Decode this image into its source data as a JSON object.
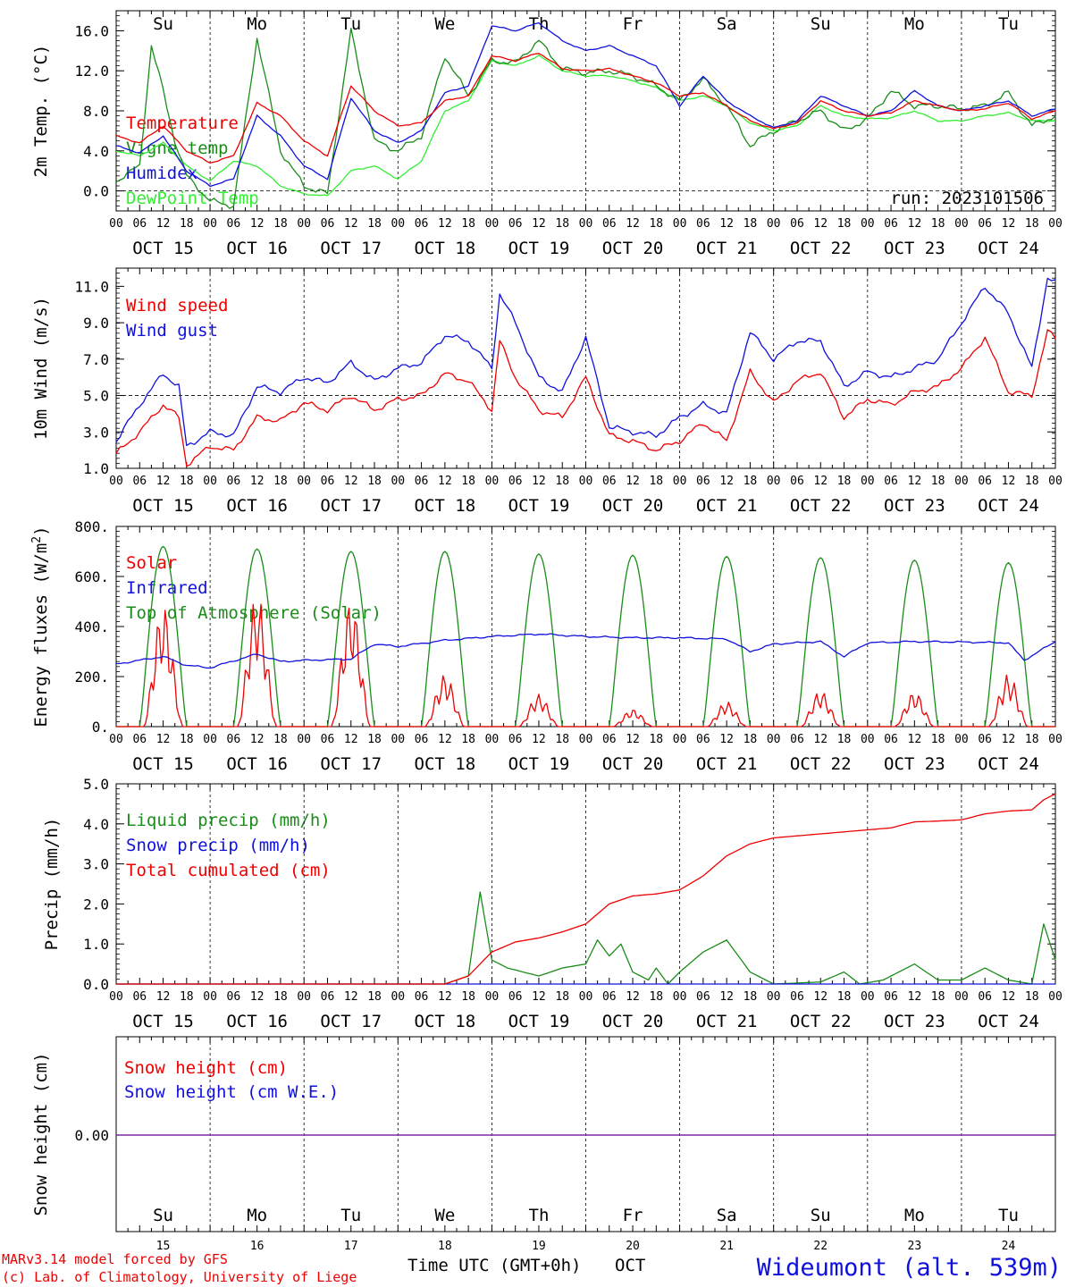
{
  "colors": {
    "red": "#ee0000",
    "green": "#1a8c1a",
    "blue": "#1010dd",
    "lightgreen": "#33ee33",
    "purple": "#7a2aa0"
  },
  "day_names": [
    "Su",
    "Mo",
    "Tu",
    "We",
    "Th",
    "Fr",
    "Sa",
    "Su",
    "Mo",
    "Tu"
  ],
  "weekend_flags": [
    true,
    false,
    false,
    false,
    false,
    false,
    true,
    true,
    false,
    false
  ],
  "dates": [
    "OCT 15",
    "OCT 16",
    "OCT 17",
    "OCT 18",
    "OCT 19",
    "OCT 20",
    "OCT 21",
    "OCT 22",
    "OCT 23",
    "OCT 24"
  ],
  "day_numbers": [
    "15",
    "16",
    "17",
    "18",
    "19",
    "20",
    "21",
    "22",
    "23",
    "24"
  ],
  "hour_labels": [
    "00",
    "06",
    "12",
    "18"
  ],
  "footer": {
    "model_line1": "MARv3.14 model forced by GFS",
    "model_line2": "(c) Lab. of Climatology, University of Liege",
    "time_axis": "Time UTC (GMT+0h)",
    "month": "OCT",
    "station": "Wideumont (alt. 539m)"
  },
  "chart_data": [
    {
      "type": "line",
      "ylabel": "2m Temp. (°C)",
      "ylim": [
        -2,
        18
      ],
      "yticks": [
        "0.0",
        "4.0",
        "8.0",
        "12.0",
        "16.0"
      ],
      "reference_line": 0,
      "annotation": "run: 2023101506",
      "x_unit": "hours since 2023-10-15 00 UTC",
      "series": [
        {
          "name": "Temperature",
          "color": "red",
          "x": [
            0,
            6,
            12,
            18,
            24,
            30,
            36,
            42,
            48,
            54,
            60,
            66,
            72,
            78,
            84,
            90,
            96,
            102,
            108,
            114,
            120,
            126,
            132,
            138,
            144,
            150,
            156,
            162,
            168,
            174,
            180,
            186,
            192,
            198,
            204,
            210,
            216,
            222,
            228,
            234,
            240
          ],
          "values": [
            5.5,
            4.8,
            6.5,
            4.0,
            2.8,
            3.5,
            8.8,
            7.5,
            5.0,
            3.5,
            10.5,
            8.0,
            6.5,
            6.8,
            9.0,
            9.5,
            13.5,
            13.0,
            13.8,
            12.2,
            12.0,
            12.2,
            11.5,
            10.8,
            9.5,
            9.8,
            8.5,
            7.0,
            6.2,
            6.8,
            9.0,
            8.0,
            7.5,
            7.8,
            9.0,
            8.5,
            8.0,
            8.2,
            8.8,
            7.2,
            8.0
          ]
        },
        {
          "name": "Vigne temp",
          "color": "green",
          "x": [
            0,
            6,
            9,
            12,
            15,
            18,
            24,
            30,
            36,
            42,
            48,
            54,
            60,
            66,
            72,
            78,
            84,
            90,
            96,
            102,
            108,
            114,
            120,
            126,
            132,
            138,
            144,
            150,
            156,
            162,
            168,
            174,
            180,
            186,
            192,
            198,
            204,
            210,
            216,
            222,
            228,
            234,
            240
          ],
          "values": [
            1.0,
            2.5,
            14.5,
            10.0,
            5.0,
            1.5,
            -1.0,
            -1.5,
            15.3,
            4.0,
            0.5,
            -0.3,
            16.0,
            5.0,
            4.0,
            5.5,
            13.5,
            9.5,
            13.0,
            12.8,
            15.0,
            12.2,
            11.8,
            12.0,
            11.5,
            10.5,
            9.0,
            11.2,
            8.5,
            4.5,
            6.0,
            7.0,
            8.0,
            6.0,
            7.2,
            10.0,
            8.5,
            8.5,
            8.2,
            8.5,
            9.8,
            6.5,
            7.5
          ]
        },
        {
          "name": "Humidex",
          "color": "blue",
          "x": [
            0,
            6,
            12,
            18,
            24,
            30,
            36,
            42,
            48,
            54,
            60,
            66,
            72,
            78,
            84,
            90,
            96,
            102,
            108,
            114,
            120,
            126,
            132,
            138,
            144,
            150,
            156,
            162,
            168,
            174,
            180,
            186,
            192,
            198,
            204,
            210,
            216,
            222,
            228,
            234,
            240
          ],
          "values": [
            4.5,
            3.8,
            5.5,
            2.0,
            0.5,
            1.2,
            7.5,
            5.5,
            2.5,
            1.2,
            9.3,
            6.0,
            4.8,
            6.0,
            9.8,
            10.5,
            16.5,
            16.0,
            16.8,
            15.0,
            14.0,
            14.5,
            13.5,
            12.5,
            8.5,
            11.5,
            9.0,
            7.5,
            6.3,
            7.0,
            9.5,
            8.5,
            7.5,
            8.0,
            10.0,
            8.5,
            8.0,
            8.5,
            9.0,
            7.5,
            8.2
          ]
        },
        {
          "name": "DewPoint Temp",
          "color": "lightgreen",
          "x": [
            0,
            6,
            12,
            18,
            24,
            30,
            36,
            42,
            48,
            54,
            60,
            66,
            72,
            78,
            84,
            90,
            96,
            102,
            108,
            114,
            120,
            126,
            132,
            138,
            144,
            150,
            156,
            162,
            168,
            174,
            180,
            186,
            192,
            198,
            204,
            210,
            216,
            222,
            228,
            234,
            240
          ],
          "values": [
            4.0,
            3.5,
            4.8,
            2.5,
            1.0,
            3.0,
            2.5,
            0.5,
            -0.3,
            -0.5,
            2.0,
            2.5,
            1.2,
            3.0,
            8.0,
            9.0,
            13.0,
            12.5,
            13.5,
            12.0,
            11.5,
            11.5,
            11.0,
            10.3,
            9.0,
            9.5,
            8.5,
            6.8,
            6.0,
            6.5,
            8.5,
            7.5,
            7.2,
            7.3,
            8.0,
            7.0,
            7.0,
            7.5,
            7.8,
            7.0,
            7.0
          ]
        }
      ]
    },
    {
      "type": "line",
      "ylabel": "10m Wind (m/s)",
      "ylim": [
        1,
        12
      ],
      "yticks": [
        "1.0",
        "3.0",
        "5.0",
        "7.0",
        "9.0",
        "11.0"
      ],
      "reference_line": 5,
      "x_unit": "hours since 2023-10-15 00 UTC",
      "series": [
        {
          "name": "Wind speed",
          "color": "red",
          "x": [
            0,
            6,
            12,
            16,
            18,
            24,
            30,
            36,
            42,
            48,
            54,
            60,
            66,
            72,
            78,
            84,
            90,
            96,
            98,
            102,
            108,
            114,
            120,
            126,
            132,
            138,
            144,
            150,
            156,
            162,
            168,
            174,
            180,
            186,
            192,
            198,
            204,
            210,
            216,
            222,
            228,
            234,
            238,
            240
          ],
          "values": [
            1.8,
            3.0,
            4.5,
            3.8,
            1.2,
            2.2,
            2.0,
            3.8,
            3.6,
            4.6,
            4.2,
            5.0,
            4.2,
            4.8,
            5.0,
            6.2,
            5.8,
            4.2,
            8.0,
            6.0,
            4.2,
            3.8,
            6.0,
            2.8,
            2.5,
            2.0,
            2.5,
            3.5,
            2.5,
            6.3,
            4.6,
            5.8,
            6.3,
            3.8,
            4.8,
            4.5,
            5.2,
            5.5,
            6.5,
            8.2,
            5.2,
            5.0,
            8.5,
            8.2
          ]
        },
        {
          "name": "Wind gust",
          "color": "blue",
          "x": [
            0,
            6,
            12,
            16,
            18,
            24,
            30,
            36,
            42,
            48,
            54,
            60,
            66,
            72,
            78,
            84,
            90,
            96,
            98,
            102,
            108,
            114,
            120,
            126,
            132,
            138,
            144,
            150,
            156,
            162,
            168,
            174,
            180,
            186,
            192,
            198,
            204,
            210,
            216,
            222,
            228,
            234,
            238,
            240
          ],
          "values": [
            2.5,
            4.5,
            6.2,
            5.5,
            2.2,
            3.0,
            2.8,
            5.5,
            5.2,
            6.0,
            5.7,
            6.8,
            5.8,
            6.5,
            6.8,
            8.3,
            8.0,
            6.5,
            10.6,
            9.0,
            6.0,
            5.2,
            8.2,
            3.3,
            3.0,
            2.8,
            3.8,
            4.5,
            4.0,
            8.5,
            7.0,
            8.0,
            8.0,
            5.5,
            6.3,
            6.0,
            6.5,
            7.0,
            9.0,
            11.0,
            9.5,
            6.5,
            11.5,
            11.2
          ]
        }
      ]
    },
    {
      "type": "line",
      "ylabel": "Energy fluxes (W/m²)",
      "ylim": [
        0,
        800
      ],
      "yticks": [
        "0.",
        "200.",
        "400.",
        "600.",
        "800."
      ],
      "x_unit": "hours since 2023-10-15 00 UTC",
      "series": [
        {
          "name": "Solar",
          "color": "red",
          "peaks": [
            490,
            530,
            510,
            210,
            130,
            70,
            100,
            145,
            140,
            210
          ]
        },
        {
          "name": "Infrared",
          "color": "blue",
          "x": [
            0,
            12,
            18,
            24,
            36,
            42,
            48,
            60,
            66,
            72,
            84,
            96,
            108,
            120,
            132,
            144,
            156,
            162,
            168,
            180,
            186,
            192,
            204,
            216,
            228,
            232,
            240
          ],
          "values": [
            250,
            280,
            245,
            235,
            290,
            260,
            265,
            270,
            330,
            320,
            345,
            360,
            370,
            360,
            355,
            355,
            350,
            300,
            330,
            340,
            280,
            335,
            340,
            338,
            335,
            265,
            340
          ]
        },
        {
          "name": "Top of Atmosphere (Solar)",
          "color": "green",
          "peaks": [
            720,
            710,
            700,
            700,
            690,
            685,
            680,
            675,
            665,
            655
          ]
        }
      ]
    },
    {
      "type": "line",
      "ylabel": "Precip (mm/h)",
      "ylim": [
        0,
        5
      ],
      "yticks": [
        "0.0",
        "1.0",
        "2.0",
        "3.0",
        "4.0",
        "5.0"
      ],
      "x_unit": "hours since 2023-10-15 00 UTC",
      "series": [
        {
          "name": "Liquid precip (mm/h)",
          "color": "green",
          "x": [
            0,
            84,
            90,
            93,
            96,
            100,
            108,
            114,
            120,
            123,
            126,
            129,
            132,
            136,
            138,
            141,
            144,
            150,
            156,
            162,
            168,
            180,
            186,
            190,
            196,
            204,
            210,
            216,
            222,
            228,
            234,
            237,
            240
          ],
          "values": [
            0,
            0,
            0.2,
            2.3,
            0.6,
            0.4,
            0.2,
            0.4,
            0.5,
            1.1,
            0.7,
            1.0,
            0.3,
            0.1,
            0.4,
            0.0,
            0.3,
            0.8,
            1.1,
            0.3,
            0,
            0.05,
            0.3,
            0,
            0.1,
            0.5,
            0.1,
            0.1,
            0.4,
            0.1,
            0,
            1.5,
            0.6
          ]
        },
        {
          "name": "Snow precip (mm/h)",
          "color": "blue",
          "x": [
            0,
            240
          ],
          "values": [
            0,
            0
          ]
        },
        {
          "name": "Total cumulated (cm)",
          "color": "red",
          "x": [
            0,
            84,
            90,
            96,
            102,
            108,
            114,
            120,
            126,
            132,
            138,
            144,
            150,
            156,
            162,
            168,
            174,
            180,
            186,
            192,
            198,
            204,
            210,
            216,
            222,
            228,
            234,
            237,
            240
          ],
          "values": [
            0,
            0,
            0.2,
            0.8,
            1.05,
            1.15,
            1.3,
            1.5,
            2.0,
            2.2,
            2.25,
            2.35,
            2.7,
            3.2,
            3.5,
            3.65,
            3.7,
            3.75,
            3.8,
            3.85,
            3.9,
            4.05,
            4.07,
            4.1,
            4.25,
            4.32,
            4.35,
            4.6,
            4.75
          ]
        }
      ]
    },
    {
      "type": "line",
      "ylabel": "Snow height (cm)",
      "yticks": [
        "0.00"
      ],
      "x_unit": "hours since 2023-10-15 00 UTC",
      "series": [
        {
          "name": "Snow height (cm)",
          "color": "red",
          "x": [
            0,
            240
          ],
          "values": [
            0,
            0
          ]
        },
        {
          "name": "Snow height (cm W.E.)",
          "color": "blue",
          "x": [
            0,
            240
          ],
          "values": [
            0,
            0
          ]
        }
      ]
    }
  ]
}
